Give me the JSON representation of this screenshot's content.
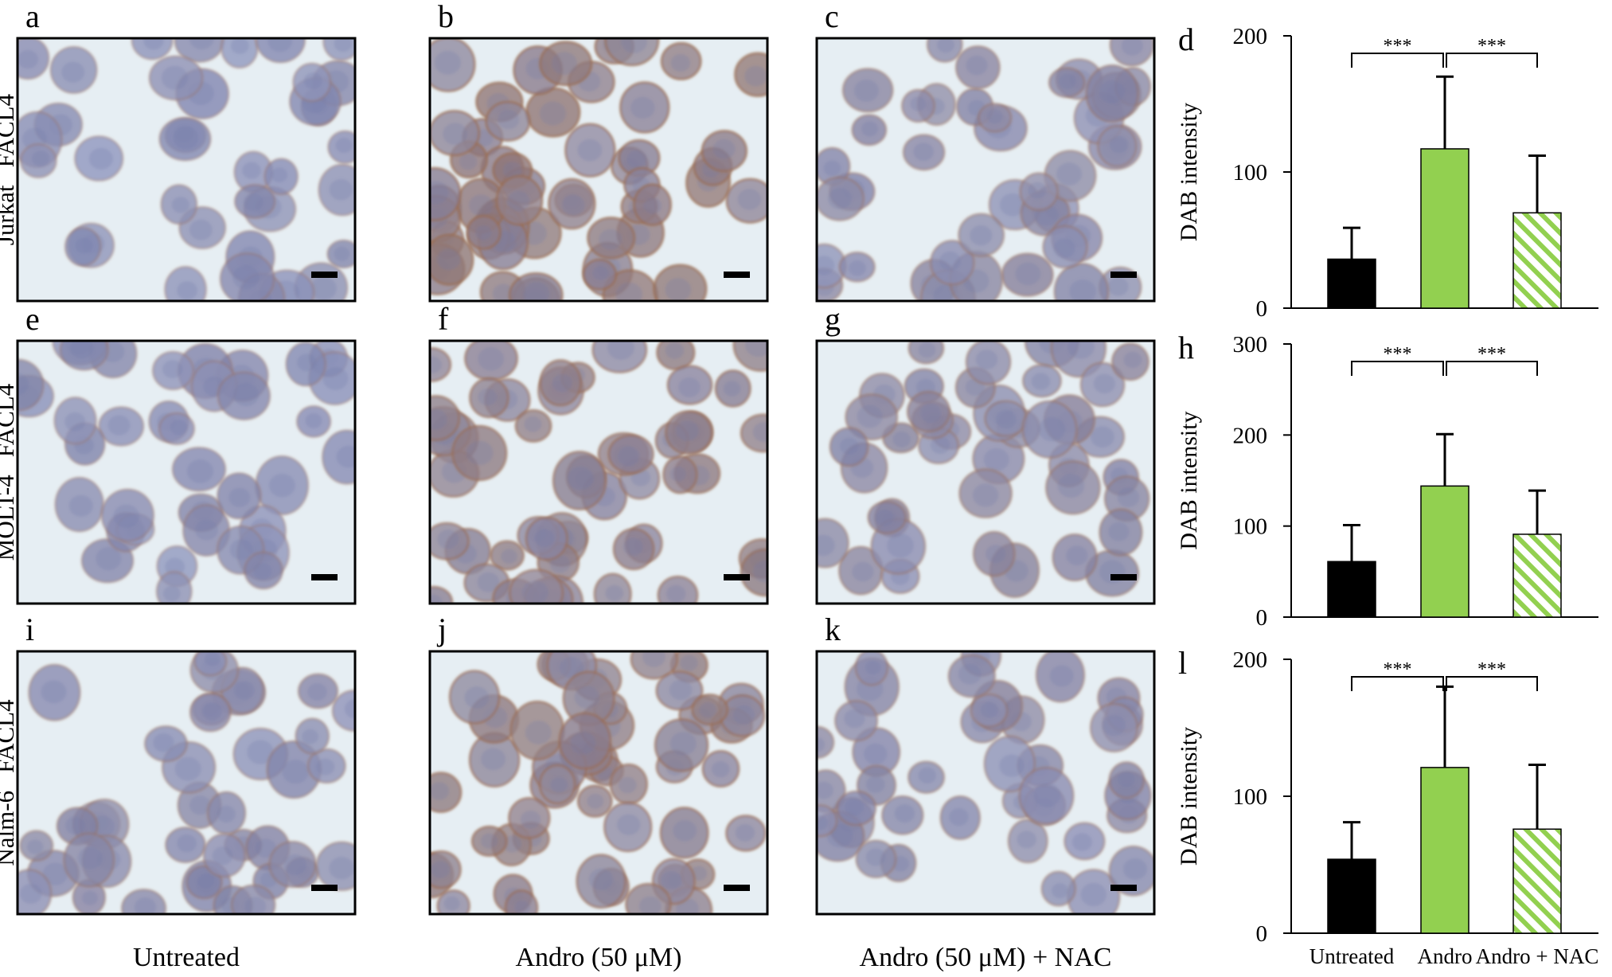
{
  "figure": {
    "micrograph_panels": [
      {
        "letter": "a",
        "cell_line": "Jurkat",
        "treatment_index": 0,
        "stain_level": 0.2
      },
      {
        "letter": "b",
        "cell_line": "Jurkat",
        "treatment_index": 1,
        "stain_level": 0.85
      },
      {
        "letter": "c",
        "cell_line": "Jurkat",
        "treatment_index": 2,
        "stain_level": 0.35
      },
      {
        "letter": "e",
        "cell_line": "MOLT-4",
        "treatment_index": 0,
        "stain_level": 0.2
      },
      {
        "letter": "f",
        "cell_line": "MOLT-4",
        "treatment_index": 1,
        "stain_level": 0.7
      },
      {
        "letter": "g",
        "cell_line": "MOLT-4",
        "treatment_index": 2,
        "stain_level": 0.4
      },
      {
        "letter": "i",
        "cell_line": "Nalm-6",
        "treatment_index": 0,
        "stain_level": 0.3
      },
      {
        "letter": "j",
        "cell_line": "Nalm-6",
        "treatment_index": 1,
        "stain_level": 0.75
      },
      {
        "letter": "k",
        "cell_line": "Nalm-6",
        "treatment_index": 2,
        "stain_level": 0.35
      }
    ],
    "row_labels": [
      {
        "cell_line": "Jurkat",
        "marker": "FACL4"
      },
      {
        "cell_line": "MOLT-4",
        "marker": "FACL4"
      },
      {
        "cell_line": "Nalm-6",
        "marker": "FACL4"
      }
    ],
    "column_labels": [
      "Untreated",
      "Andro (50 μM)",
      "Andro (50 μM) + NAC"
    ],
    "colors": {
      "background": "#e6eef3",
      "cell_blue": "#8f9bc8",
      "cell_dark": "#6f76a8",
      "dab_brown": "#9a6a4a",
      "bar_untreated": "#000000",
      "bar_andro": "#92d050",
      "bar_nac_hatch": "#92d050"
    }
  },
  "chart_data": [
    {
      "panel": "d",
      "type": "bar",
      "categories": [
        "Untreated",
        "Andro",
        "Andro + NAC"
      ],
      "values": [
        36,
        117,
        70
      ],
      "errors": [
        23,
        53,
        42
      ],
      "ylabel": "DAB intensity",
      "ylim": [
        0,
        200
      ],
      "yticks": [
        0,
        100,
        200
      ],
      "significance": [
        {
          "from": 0,
          "to": 1,
          "label": "***"
        },
        {
          "from": 1,
          "to": 2,
          "label": "***"
        }
      ],
      "show_category_labels": false
    },
    {
      "panel": "h",
      "type": "bar",
      "categories": [
        "Untreated",
        "Andro",
        "Andro + NAC"
      ],
      "values": [
        61,
        144,
        91
      ],
      "errors": [
        40,
        57,
        48
      ],
      "ylabel": "DAB intensity",
      "ylim": [
        0,
        300
      ],
      "yticks": [
        0,
        100,
        200,
        300
      ],
      "significance": [
        {
          "from": 0,
          "to": 1,
          "label": "***"
        },
        {
          "from": 1,
          "to": 2,
          "label": "***"
        }
      ],
      "show_category_labels": false
    },
    {
      "panel": "l",
      "type": "bar",
      "categories": [
        "Untreated",
        "Andro",
        "Andro + NAC"
      ],
      "values": [
        54,
        121,
        76
      ],
      "errors": [
        27,
        59,
        47
      ],
      "ylabel": "DAB intensity",
      "ylim": [
        0,
        200
      ],
      "yticks": [
        0,
        100,
        200
      ],
      "significance": [
        {
          "from": 0,
          "to": 1,
          "label": "***"
        },
        {
          "from": 1,
          "to": 2,
          "label": "***"
        }
      ],
      "show_category_labels": true
    }
  ]
}
